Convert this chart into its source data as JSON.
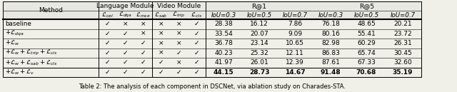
{
  "title": "Table 2: The analysis of each component in DSCNet, via ablation study on Charades-STA.",
  "rows": [
    [
      "baseline",
      "v",
      "x",
      "x",
      "x",
      "x",
      "v",
      "28.38",
      "16.12",
      "7.86",
      "76.18",
      "48.65",
      "20.21"
    ],
    [
      "$+ \\mathcal{L}_{dqa}$",
      "v",
      "v",
      "x",
      "x",
      "x",
      "v",
      "33.54",
      "20.07",
      "9.09",
      "80.16",
      "55.41",
      "23.72"
    ],
    [
      "$+ \\mathcal{L}_{w}$",
      "v",
      "v",
      "v",
      "x",
      "x",
      "v",
      "36.78",
      "23.14",
      "10.65",
      "82.98",
      "60.29",
      "26.31"
    ],
    [
      "$+ \\mathcal{L}_{w} + \\mathcal{L}_{trip} + \\mathcal{L}_{cls}$",
      "v",
      "v",
      "v",
      "x",
      "v",
      "v",
      "40.23",
      "25.32",
      "12.11",
      "86.83",
      "65.74",
      "30.45"
    ],
    [
      "$+ \\mathcal{L}_{w} + \\mathcal{L}_{sab} + \\mathcal{L}_{cls}$",
      "v",
      "v",
      "v",
      "v",
      "x",
      "v",
      "41.97",
      "26.01",
      "12.39",
      "87.61",
      "67.33",
      "32.60"
    ],
    [
      "$+ \\mathcal{L}_{w} + \\mathcal{L}_{v}$",
      "v",
      "v",
      "v",
      "v",
      "v",
      "v",
      "44.15",
      "28.73",
      "14.67",
      "91.48",
      "70.68",
      "35.19"
    ]
  ],
  "bg_color": "#f0efe8",
  "font_size": 6.5
}
